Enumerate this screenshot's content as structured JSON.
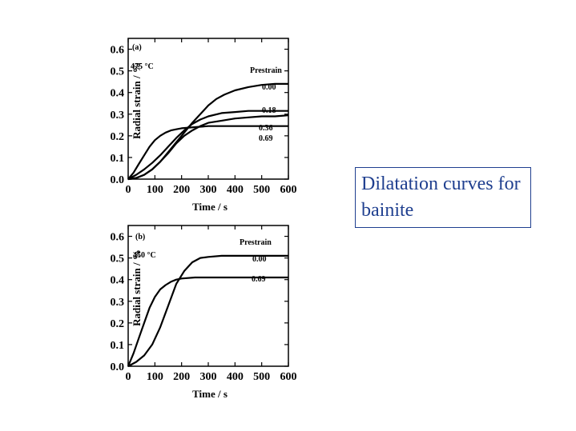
{
  "caption": {
    "text": "Dilatation curves for bainite",
    "color": "#1f3f8f"
  },
  "chart_data": [
    {
      "type": "line",
      "panel_label": "(a)",
      "temperature_label": "475 °C",
      "legend_title": "Prestrain",
      "xlabel": "Time / s",
      "ylabel": "Radial strain / %",
      "xlim": [
        0,
        600
      ],
      "ylim": [
        0,
        0.65
      ],
      "x_ticks": [
        "0",
        "100",
        "200",
        "300",
        "400",
        "500",
        "600"
      ],
      "y_ticks": [
        "0.0",
        "0.1",
        "0.2",
        "0.3",
        "0.4",
        "0.5",
        "0.6"
      ],
      "series": [
        {
          "name": "0.00",
          "x": [
            0,
            30,
            60,
            90,
            120,
            150,
            180,
            210,
            240,
            270,
            300,
            330,
            360,
            400,
            450,
            500,
            550,
            600
          ],
          "y": [
            0,
            0.005,
            0.02,
            0.045,
            0.08,
            0.125,
            0.17,
            0.215,
            0.26,
            0.3,
            0.34,
            0.37,
            0.39,
            0.41,
            0.425,
            0.435,
            0.44,
            0.44
          ]
        },
        {
          "name": "0.18",
          "x": [
            0,
            30,
            60,
            90,
            120,
            150,
            180,
            210,
            240,
            270,
            300,
            350,
            400,
            450,
            500,
            550,
            600
          ],
          "y": [
            0,
            0.02,
            0.045,
            0.075,
            0.11,
            0.15,
            0.19,
            0.225,
            0.255,
            0.275,
            0.29,
            0.305,
            0.31,
            0.315,
            0.315,
            0.315,
            0.315
          ]
        },
        {
          "name": "0.36",
          "x": [
            0,
            30,
            60,
            90,
            120,
            150,
            180,
            210,
            240,
            270,
            300,
            350,
            400,
            450,
            500,
            550,
            600
          ],
          "y": [
            0,
            0.005,
            0.02,
            0.045,
            0.08,
            0.12,
            0.165,
            0.2,
            0.225,
            0.245,
            0.26,
            0.27,
            0.28,
            0.285,
            0.29,
            0.29,
            0.295
          ]
        },
        {
          "name": "0.69",
          "x": [
            0,
            20,
            40,
            60,
            80,
            100,
            120,
            140,
            160,
            180,
            200,
            250,
            300,
            350,
            400,
            450,
            500,
            550,
            600
          ],
          "y": [
            0,
            0.03,
            0.07,
            0.11,
            0.15,
            0.18,
            0.2,
            0.215,
            0.225,
            0.23,
            0.235,
            0.24,
            0.245,
            0.245,
            0.245,
            0.245,
            0.245,
            0.245,
            0.245
          ]
        }
      ]
    },
    {
      "type": "line",
      "panel_label": "(b)",
      "temperature_label": "450 °C",
      "legend_title": "Prestrain",
      "xlabel": "Time / s",
      "ylabel": "Radial strain / %",
      "xlim": [
        0,
        600
      ],
      "ylim": [
        0,
        0.65
      ],
      "x_ticks": [
        "0",
        "100",
        "200",
        "300",
        "400",
        "500",
        "600"
      ],
      "y_ticks": [
        "0.0",
        "0.1",
        "0.2",
        "0.3",
        "0.4",
        "0.5",
        "0.6"
      ],
      "series": [
        {
          "name": "0.00",
          "x": [
            0,
            30,
            60,
            90,
            120,
            150,
            180,
            210,
            240,
            270,
            300,
            350,
            400,
            450,
            500,
            550,
            600
          ],
          "y": [
            0,
            0.02,
            0.05,
            0.1,
            0.18,
            0.28,
            0.38,
            0.44,
            0.48,
            0.5,
            0.505,
            0.51,
            0.51,
            0.51,
            0.51,
            0.51,
            0.51
          ]
        },
        {
          "name": "0.69",
          "x": [
            0,
            20,
            40,
            60,
            80,
            100,
            120,
            140,
            160,
            180,
            200,
            250,
            300,
            350,
            400,
            450,
            500,
            550,
            600
          ],
          "y": [
            0,
            0.06,
            0.13,
            0.2,
            0.27,
            0.32,
            0.355,
            0.375,
            0.39,
            0.4,
            0.405,
            0.41,
            0.41,
            0.41,
            0.41,
            0.41,
            0.41,
            0.41,
            0.41
          ]
        }
      ]
    }
  ]
}
